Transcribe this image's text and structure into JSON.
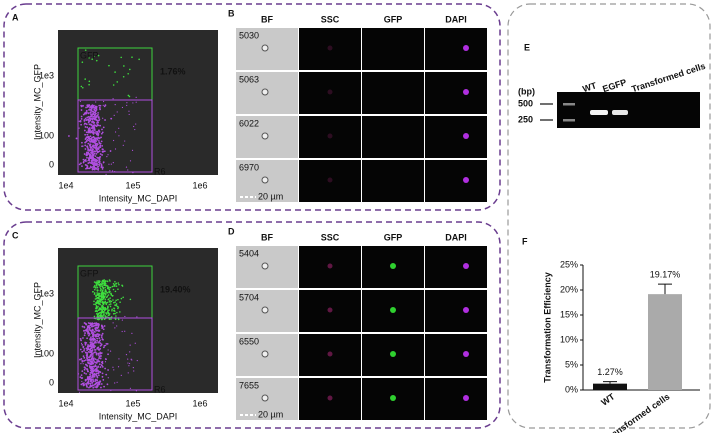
{
  "flow_panels": [
    {
      "label": "A",
      "gate_label": "GFP",
      "percent": "1.76%",
      "region": "R6",
      "y_axis_label": "Intensity_MC_GFP",
      "x_axis_label": "Intensity_MC_DAPI",
      "y_ticks": [
        "0",
        "100",
        "1e3"
      ],
      "x_ticks": [
        "1e4",
        "1e5",
        "1e6"
      ]
    },
    {
      "label": "C",
      "gate_label": "GFP",
      "percent": "19.40%",
      "region": "R6",
      "y_axis_label": "Intensity_MC_GFP",
      "x_axis_label": "Intensity_MC_DAPI",
      "y_ticks": [
        "0",
        "100",
        "1e3"
      ],
      "x_ticks": [
        "1e4",
        "1e5",
        "1e6"
      ]
    }
  ],
  "gallery_panels": [
    {
      "label": "B",
      "columns": [
        "BF",
        "SSC",
        "GFP",
        "DAPI"
      ],
      "cells": [
        "5030",
        "5063",
        "6022",
        "6970"
      ],
      "scale_bar": "20 µm"
    },
    {
      "label": "D",
      "columns": [
        "BF",
        "SSC",
        "GFP",
        "DAPI"
      ],
      "cells": [
        "5404",
        "5704",
        "6550",
        "7655"
      ],
      "scale_bar": "20 µm"
    }
  ],
  "gel": {
    "label": "E",
    "unit": "(bp)",
    "markers": [
      "500",
      "250"
    ],
    "lanes": [
      "WT",
      "EGFP",
      "Transformed cells"
    ]
  },
  "chart_data": {
    "type": "bar",
    "panel_label": "F",
    "y_axis_label": "Transformation Efficiency",
    "categories": [
      "WT",
      "Transformed cells"
    ],
    "values": [
      1.27,
      19.17
    ],
    "value_labels": [
      "1.27%",
      "19.17%"
    ],
    "errors": [
      0.4,
      2
    ],
    "colors": [
      "#111111",
      "#aaaaaa"
    ],
    "ylim": [
      0,
      25
    ],
    "yticks": [
      {
        "value": 0,
        "label": "0%"
      },
      {
        "value": 5,
        "label": "5%"
      },
      {
        "value": 10,
        "label": "10%"
      },
      {
        "value": 15,
        "label": "15%"
      },
      {
        "value": 20,
        "label": "20%"
      },
      {
        "value": 25,
        "label": "25%"
      }
    ]
  }
}
